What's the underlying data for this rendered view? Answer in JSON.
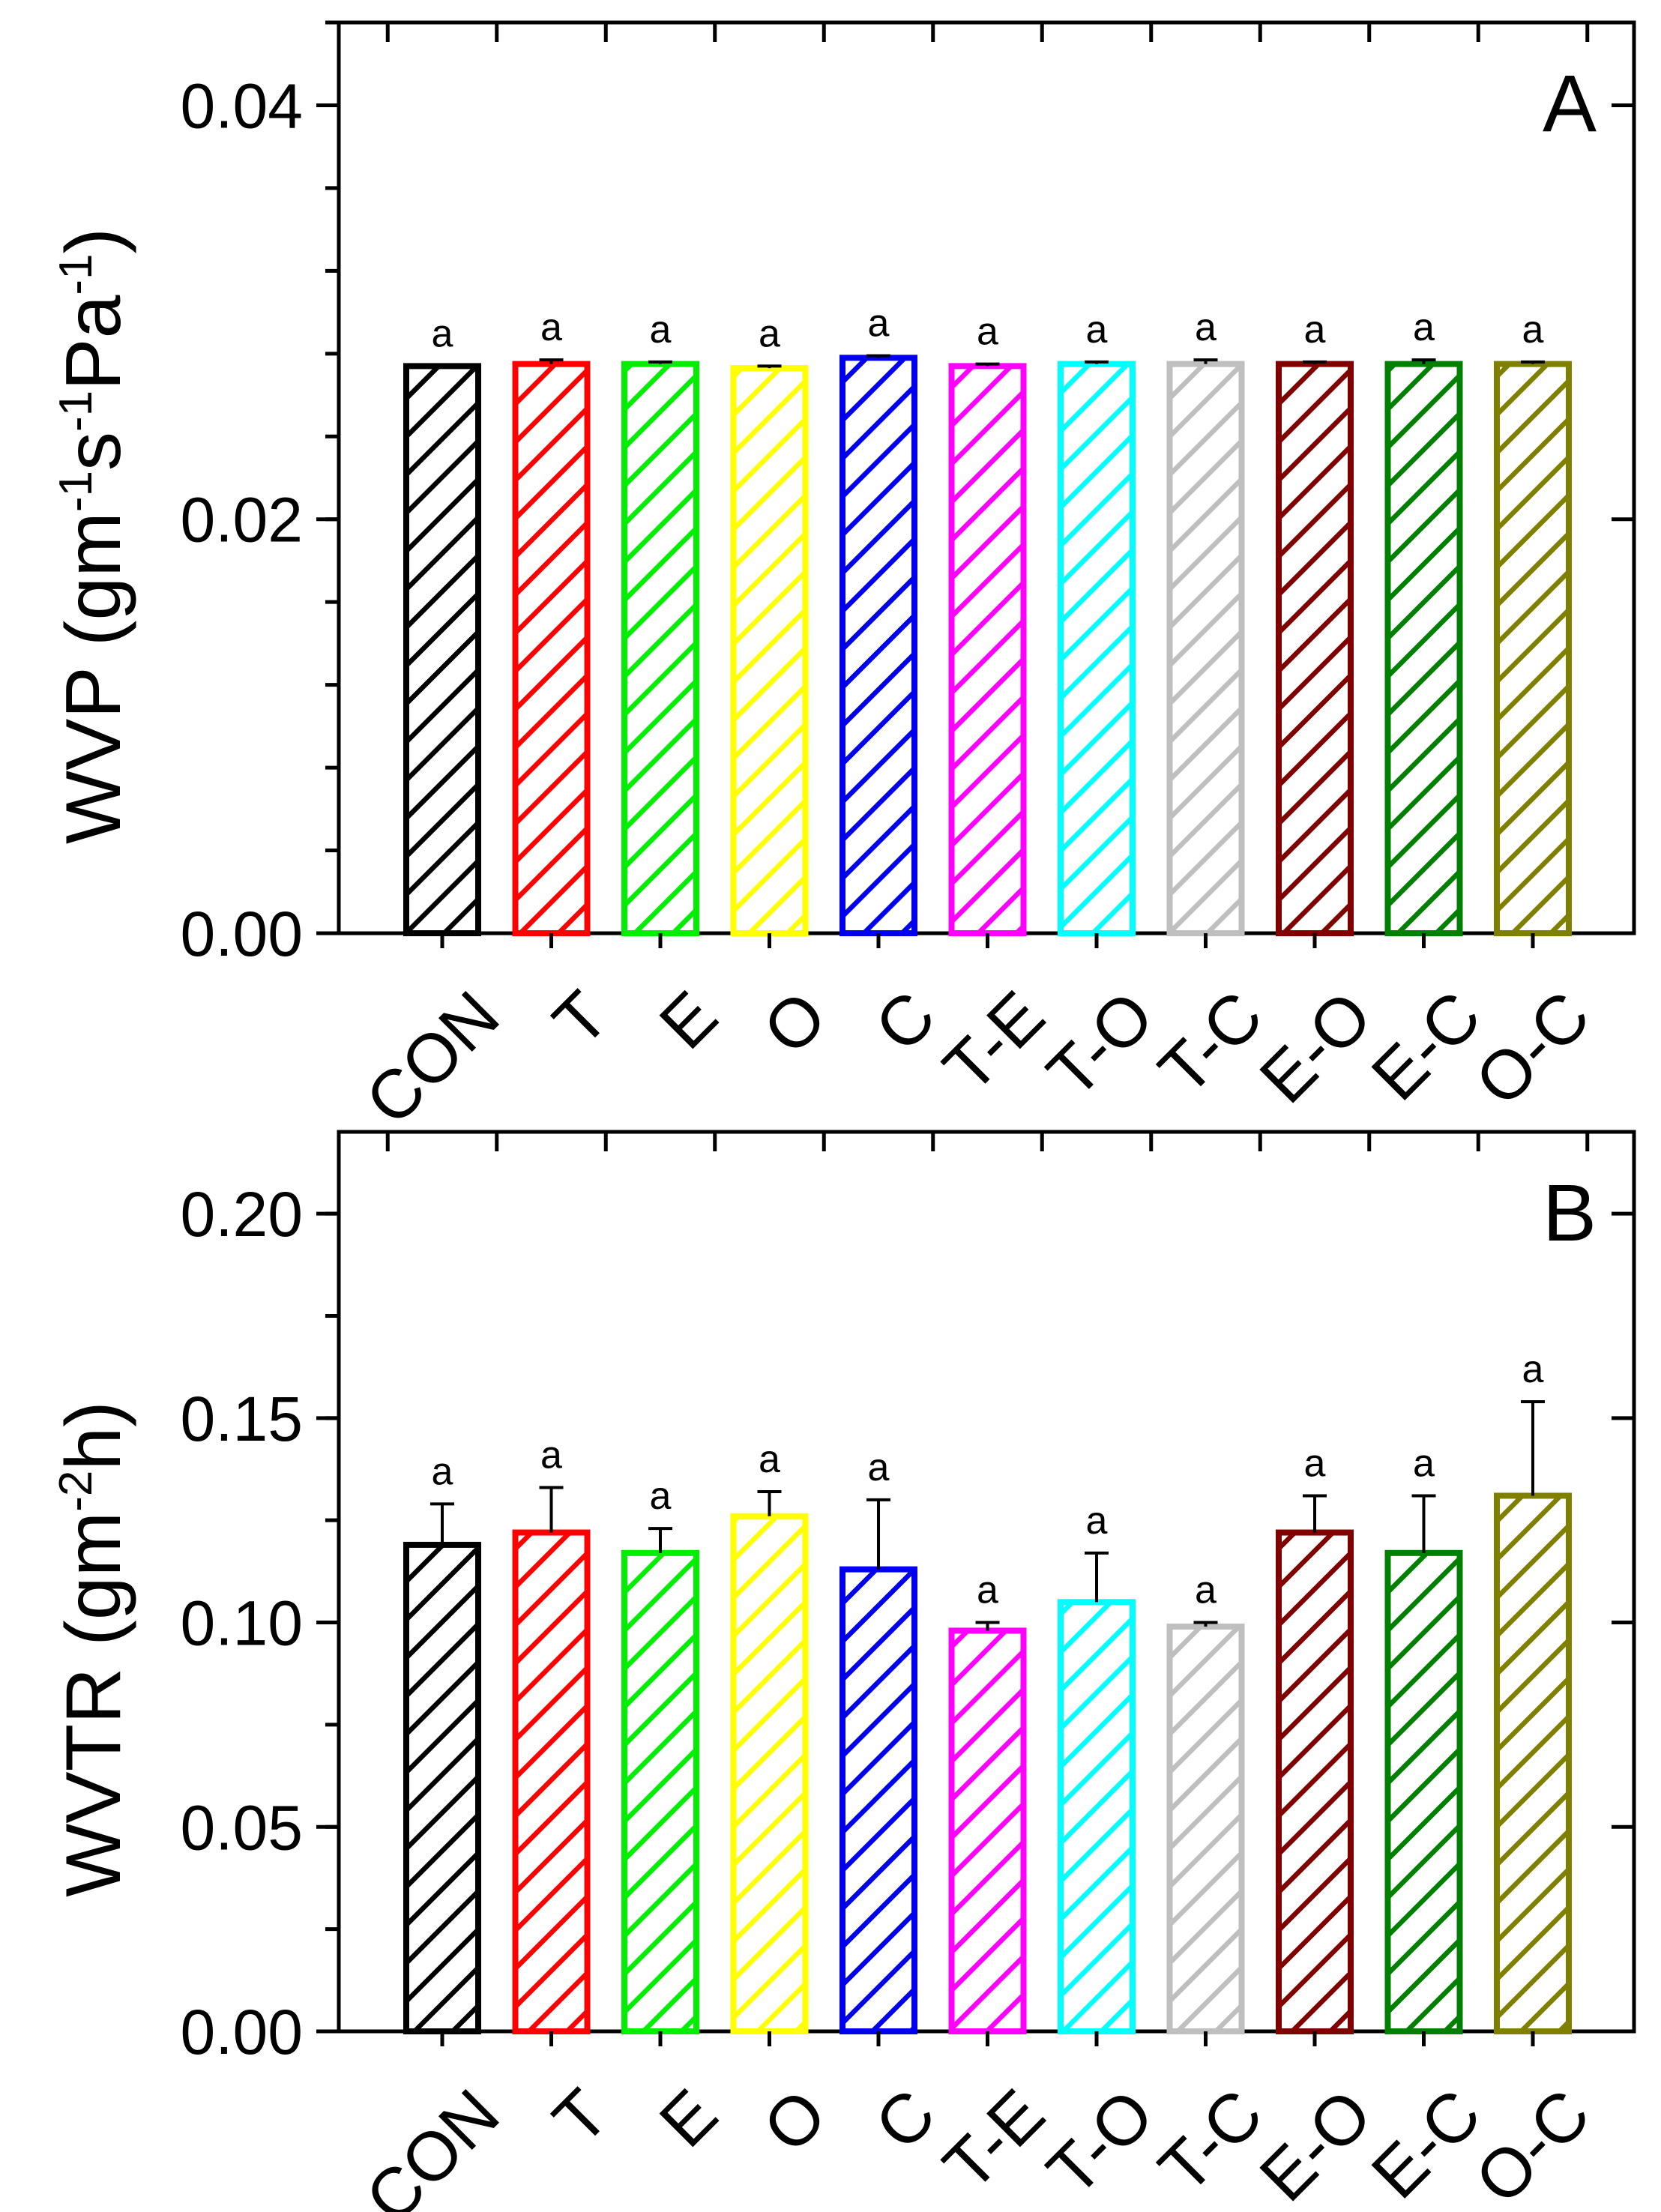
{
  "chart_data": [
    {
      "type": "bar",
      "panel": "A",
      "categories": [
        "CON",
        "T",
        "E",
        "O",
        "C",
        "T-E",
        "T-O",
        "T-C",
        "E-O",
        "E-C",
        "O-C"
      ],
      "values": [
        0.0274,
        0.0275,
        0.0275,
        0.0273,
        0.0278,
        0.0274,
        0.0275,
        0.0275,
        0.0275,
        0.0275,
        0.0275
      ],
      "errors": [
        0.0,
        0.0002,
        0.0001,
        0.0001,
        0.0001,
        0.0001,
        0.0001,
        0.0002,
        0.0001,
        0.0002,
        0.0001
      ],
      "significance": [
        "a",
        "a",
        "a",
        "a",
        "a",
        "a",
        "a",
        "a",
        "a",
        "a",
        "a"
      ],
      "ylabel": {
        "main": "WVP (gm",
        "sup1": "-1",
        "mid1": "s",
        "sup2": "-1",
        "mid2": "Pa",
        "sup3": "-1",
        "end": ")"
      },
      "ylim": [
        0,
        0.044
      ],
      "yticks": [
        0.0,
        0.02,
        0.04
      ],
      "ytick_labels": [
        "0.00",
        "0.02",
        "0.04"
      ],
      "minor_step": 0.004
    },
    {
      "type": "bar",
      "panel": "B",
      "categories": [
        "CON",
        "T",
        "E",
        "O",
        "C",
        "T-E",
        "T-O",
        "T-C",
        "E-O",
        "E-C",
        "O-C"
      ],
      "values": [
        0.119,
        0.122,
        0.117,
        0.126,
        0.113,
        0.098,
        0.105,
        0.099,
        0.122,
        0.117,
        0.131
      ],
      "errors": [
        0.01,
        0.011,
        0.006,
        0.006,
        0.017,
        0.002,
        0.012,
        0.001,
        0.009,
        0.014,
        0.023
      ],
      "significance": [
        "a",
        "a",
        "a",
        "a",
        "a",
        "a",
        "a",
        "a",
        "a",
        "a",
        "a"
      ],
      "ylabel": {
        "main": "WVTR (gm",
        "sup1": "-2",
        "end": "h)"
      },
      "ylim": [
        0,
        0.22
      ],
      "yticks": [
        0.0,
        0.05,
        0.1,
        0.15,
        0.2
      ],
      "ytick_labels": [
        "0.00",
        "0.05",
        "0.10",
        "0.15",
        "0.20"
      ],
      "minor_step": 0.025
    }
  ],
  "colors": [
    "#000000",
    "#ff0000",
    "#00ee00",
    "#ffff00",
    "#0000ee",
    "#ff00ff",
    "#00ffff",
    "#bfbfbf",
    "#800000",
    "#008000",
    "#808000"
  ]
}
